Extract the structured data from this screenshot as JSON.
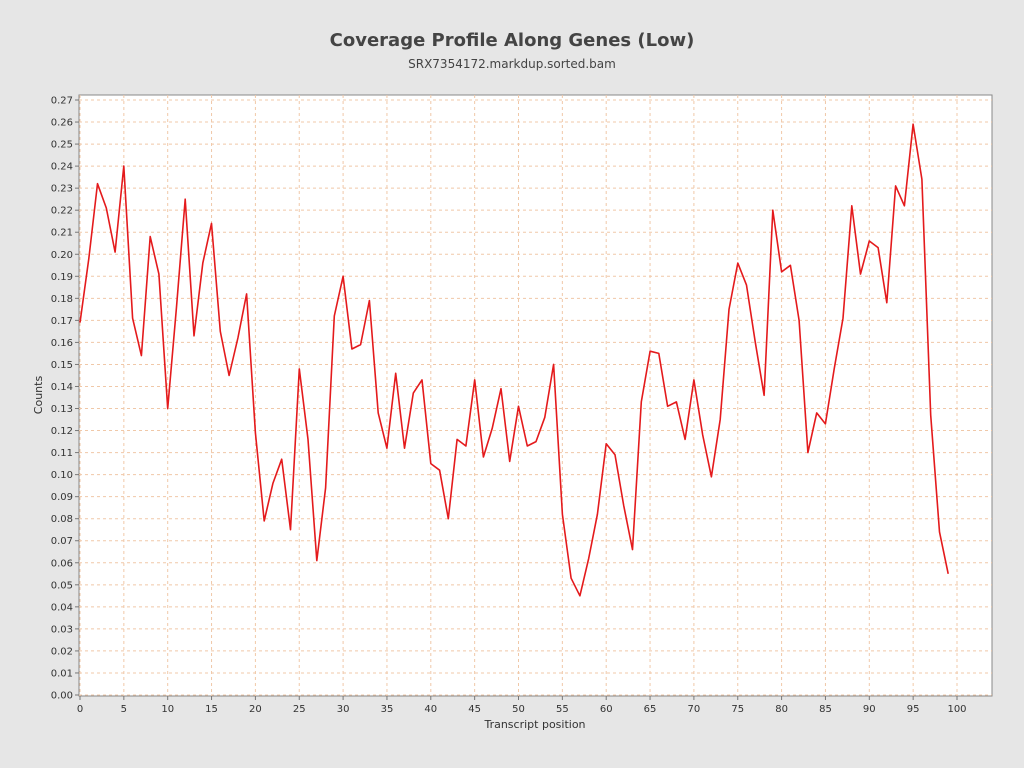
{
  "chart_data": {
    "type": "line",
    "title": "Coverage Profile Along Genes (Low)",
    "subtitle": "SRX7354172.markdup.sorted.bam",
    "xlabel": "Transcript position",
    "ylabel": "Counts",
    "xlim": [
      0,
      104
    ],
    "ylim": [
      0,
      0.272
    ],
    "grid": true,
    "x_ticks": [
      0,
      5,
      10,
      15,
      20,
      25,
      30,
      35,
      40,
      45,
      50,
      55,
      60,
      65,
      70,
      75,
      80,
      85,
      90,
      95,
      100
    ],
    "y_ticks": [
      "0.00",
      "0.01",
      "0.02",
      "0.03",
      "0.04",
      "0.05",
      "0.06",
      "0.07",
      "0.08",
      "0.09",
      "0.10",
      "0.11",
      "0.12",
      "0.13",
      "0.14",
      "0.15",
      "0.16",
      "0.17",
      "0.18",
      "0.19",
      "0.20",
      "0.21",
      "0.22",
      "0.23",
      "0.24",
      "0.25",
      "0.26",
      "0.27"
    ],
    "series": [
      {
        "color": "#e41a1c",
        "x": [
          0,
          1,
          2,
          3,
          4,
          5,
          6,
          7,
          8,
          9,
          10,
          11,
          12,
          13,
          14,
          15,
          16,
          17,
          18,
          19,
          20,
          21,
          22,
          23,
          24,
          25,
          26,
          27,
          28,
          29,
          30,
          31,
          32,
          33,
          34,
          35,
          36,
          37,
          38,
          39,
          40,
          41,
          42,
          43,
          44,
          45,
          46,
          47,
          48,
          49,
          50,
          51,
          52,
          53,
          54,
          55,
          56,
          57,
          58,
          59,
          60,
          61,
          62,
          63,
          64,
          65,
          66,
          67,
          68,
          69,
          70,
          71,
          72,
          73,
          74,
          75,
          76,
          77,
          78,
          79,
          80,
          81,
          82,
          83,
          84,
          85,
          86,
          87,
          88,
          89,
          90,
          91,
          92,
          93,
          94,
          95,
          96,
          97,
          98,
          99
        ],
        "values": [
          0.169,
          0.198,
          0.232,
          0.221,
          0.201,
          0.24,
          0.171,
          0.154,
          0.208,
          0.191,
          0.13,
          0.176,
          0.225,
          0.163,
          0.196,
          0.214,
          0.165,
          0.145,
          0.162,
          0.182,
          0.119,
          0.079,
          0.096,
          0.107,
          0.075,
          0.148,
          0.116,
          0.061,
          0.094,
          0.172,
          0.19,
          0.157,
          0.159,
          0.179,
          0.128,
          0.112,
          0.146,
          0.112,
          0.137,
          0.143,
          0.105,
          0.102,
          0.08,
          0.116,
          0.113,
          0.143,
          0.108,
          0.121,
          0.139,
          0.106,
          0.131,
          0.113,
          0.115,
          0.126,
          0.15,
          0.082,
          0.053,
          0.045,
          0.062,
          0.082,
          0.114,
          0.109,
          0.086,
          0.066,
          0.133,
          0.156,
          0.155,
          0.131,
          0.133,
          0.116,
          0.143,
          0.118,
          0.099,
          0.125,
          0.175,
          0.196,
          0.186,
          0.16,
          0.136,
          0.22,
          0.192,
          0.195,
          0.17,
          0.11,
          0.128,
          0.123,
          0.148,
          0.171,
          0.222,
          0.191,
          0.206,
          0.203,
          0.178,
          0.231,
          0.222,
          0.259,
          0.234,
          0.127,
          0.074,
          0.055
        ]
      }
    ]
  }
}
